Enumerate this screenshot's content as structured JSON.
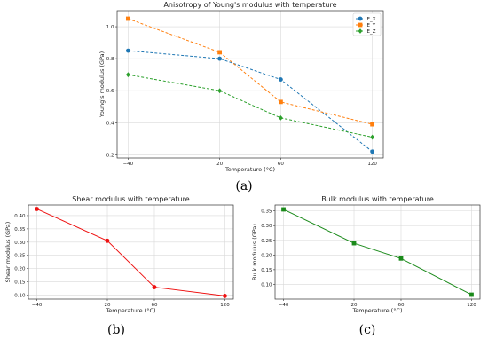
{
  "chart_data": [
    {
      "type": "line",
      "panel_label": "(a)",
      "title": "Anisotropy of Young's modulus with temperature",
      "xlabel": "Temperature (°C)",
      "ylabel": "Young's modulus (GPa)",
      "categories": [
        "−40",
        "20",
        "60",
        "120"
      ],
      "x": [
        -40,
        20,
        60,
        120
      ],
      "yticks": [
        "0.2",
        "0.4",
        "0.6",
        "0.8",
        "1.0"
      ],
      "ylim": [
        0.18,
        1.1
      ],
      "grid": true,
      "legend_position": "top-right",
      "series": [
        {
          "name": "E_X",
          "values": [
            0.85,
            0.8,
            0.67,
            0.22
          ],
          "color": "#1f77b4",
          "linestyle": "dashed",
          "marker": "circle"
        },
        {
          "name": "E_Y",
          "values": [
            1.05,
            0.84,
            0.53,
            0.39
          ],
          "color": "#ff7f0e",
          "linestyle": "dashed",
          "marker": "square"
        },
        {
          "name": "E_Z",
          "values": [
            0.7,
            0.6,
            0.43,
            0.31
          ],
          "color": "#2ca02c",
          "linestyle": "dashed",
          "marker": "diamond"
        }
      ]
    },
    {
      "type": "line",
      "panel_label": "(b)",
      "title": "Shear modulus with temperature",
      "xlabel": "Temperature (°C)",
      "ylabel": "Shear modulus (GPa)",
      "categories": [
        "−40",
        "20",
        "60",
        "120"
      ],
      "x": [
        -40,
        20,
        60,
        120
      ],
      "yticks": [
        "0.10",
        "0.15",
        "0.20",
        "0.25",
        "0.30",
        "0.35",
        "0.40"
      ],
      "ylim": [
        0.085,
        0.44
      ],
      "grid": true,
      "series": [
        {
          "values": [
            0.425,
            0.305,
            0.13,
            0.097
          ],
          "color": "#ee1111",
          "linestyle": "solid",
          "marker": "circle"
        }
      ]
    },
    {
      "type": "line",
      "panel_label": "(c)",
      "title": "Bulk modulus with temperature",
      "xlabel": "Temperature (°C)",
      "ylabel": "Bulk modulus (GPa)",
      "categories": [
        "−40",
        "20",
        "60",
        "120"
      ],
      "x": [
        -40,
        20,
        60,
        120
      ],
      "yticks": [
        "0.10",
        "0.15",
        "0.20",
        "0.25",
        "0.30",
        "0.35"
      ],
      "ylim": [
        0.05,
        0.37
      ],
      "grid": true,
      "series": [
        {
          "values": [
            0.355,
            0.24,
            0.188,
            0.065
          ],
          "color": "#1a8a1a",
          "linestyle": "solid",
          "marker": "square"
        }
      ]
    }
  ]
}
